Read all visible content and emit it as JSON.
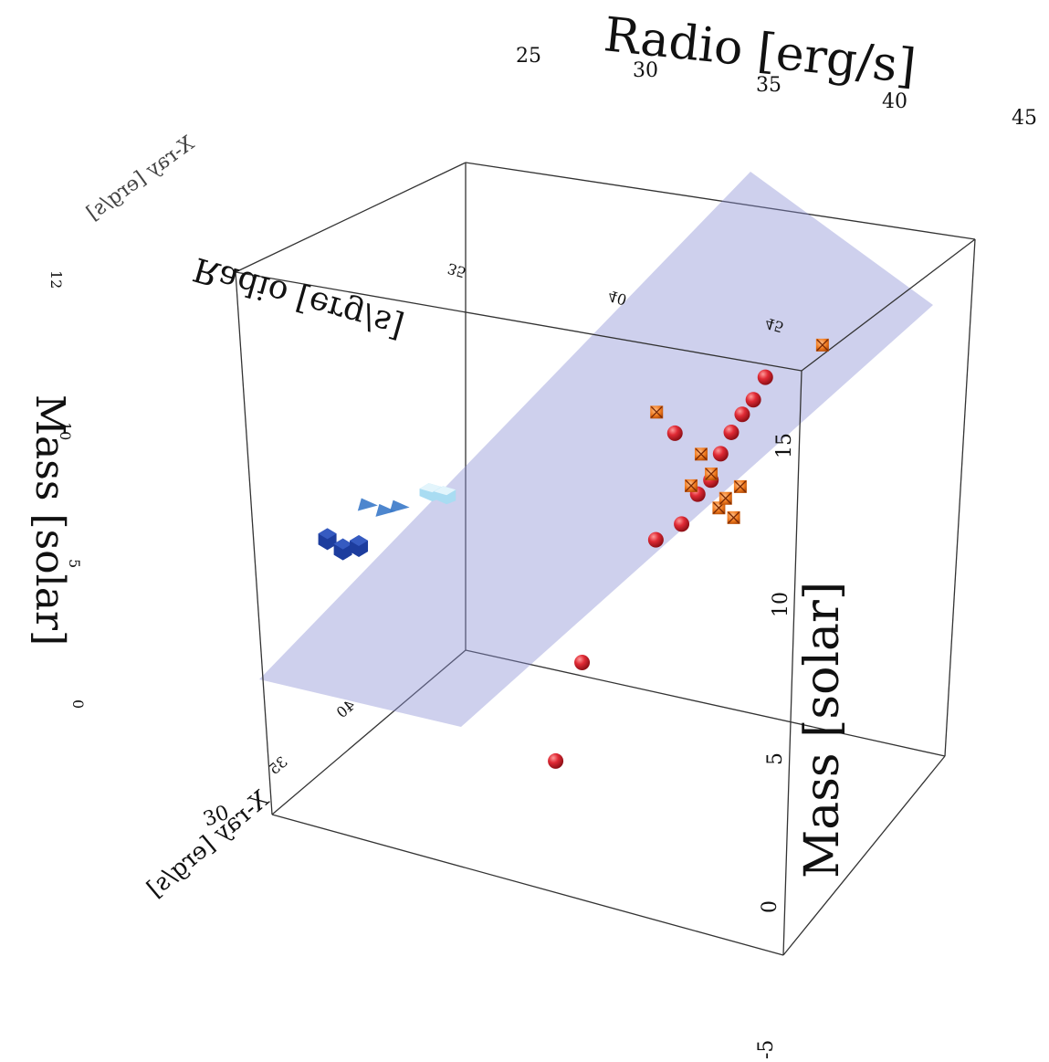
{
  "chart_data": {
    "type": "scatter",
    "dimensions": 3,
    "axes": {
      "radio": {
        "label": "Radio [erg/s]",
        "ticks": [
          "25",
          "30",
          "35",
          "40",
          "45"
        ],
        "ticks_reversed": [
          "35",
          "40",
          "45"
        ]
      },
      "xray": {
        "label": "X-ray [erg/s]",
        "ticks": [
          "30",
          "35",
          "40"
        ]
      },
      "mass": {
        "label": "Mass [solar]",
        "ticks": [
          "0",
          "5",
          "10",
          "15"
        ],
        "ticks_outer": [
          "-5"
        ],
        "ticks_reversed": [
          "0",
          "5",
          "10",
          "12"
        ]
      }
    },
    "fit_plane": {
      "shown": true,
      "color": "#8a8fd3",
      "opacity": 0.42
    },
    "series": [
      {
        "marker": "sphere",
        "color": "#d81e2c",
        "points": [
          {
            "radio": 37.2,
            "xray": 33.1,
            "mass": 2.6
          },
          {
            "radio": 38.1,
            "xray": 34.2,
            "mass": 5.3
          },
          {
            "radio": 41.1,
            "xray": 35.8,
            "mass": 8.9
          },
          {
            "radio": 42.3,
            "xray": 36.0,
            "mass": 9.5
          },
          {
            "radio": 43.0,
            "xray": 36.3,
            "mass": 10.4
          },
          {
            "radio": 43.5,
            "xray": 36.6,
            "mass": 10.8
          },
          {
            "radio": 43.8,
            "xray": 37.0,
            "mass": 11.5
          },
          {
            "radio": 44.2,
            "xray": 37.3,
            "mass": 12.1
          },
          {
            "radio": 44.6,
            "xray": 37.6,
            "mass": 12.6
          },
          {
            "radio": 45.0,
            "xray": 37.9,
            "mass": 13.0
          },
          {
            "radio": 45.4,
            "xray": 38.3,
            "mass": 13.6
          },
          {
            "radio": 42.0,
            "xray": 36.4,
            "mass": 12.0
          }
        ]
      },
      {
        "marker": "star",
        "color": "#f07a1e",
        "points": [
          {
            "radio": 41.5,
            "xray": 35.9,
            "mass": 12.7
          },
          {
            "radio": 42.7,
            "xray": 36.3,
            "mass": 10.6
          },
          {
            "radio": 43.1,
            "xray": 36.6,
            "mass": 11.5
          },
          {
            "radio": 43.4,
            "xray": 36.8,
            "mass": 10.9
          },
          {
            "radio": 43.6,
            "xray": 36.9,
            "mass": 9.9
          },
          {
            "radio": 43.9,
            "xray": 37.0,
            "mass": 10.2
          },
          {
            "radio": 44.1,
            "xray": 37.2,
            "mass": 9.6
          },
          {
            "radio": 44.4,
            "xray": 37.4,
            "mass": 10.5
          },
          {
            "radio": 47.2,
            "xray": 40.0,
            "mass": 14.3
          }
        ]
      },
      {
        "marker": "cube",
        "color": "#1d3d9e",
        "points": [
          {
            "radio": 28.0,
            "xray": 31.0,
            "mass": 8.3
          },
          {
            "radio": 28.4,
            "xray": 31.5,
            "mass": 7.9
          },
          {
            "radio": 29.0,
            "xray": 31.8,
            "mass": 8.0
          }
        ]
      },
      {
        "marker": "cone",
        "color": "#3a79c9",
        "points": [
          {
            "radio": 29.4,
            "xray": 32.0,
            "mass": 9.2
          },
          {
            "radio": 30.0,
            "xray": 32.4,
            "mass": 9.0
          },
          {
            "radio": 30.5,
            "xray": 32.7,
            "mass": 9.1
          }
        ]
      },
      {
        "marker": "box",
        "color": "#a9dcf2",
        "points": [
          {
            "radio": 31.8,
            "xray": 33.2,
            "mass": 9.6
          },
          {
            "radio": 32.3,
            "xray": 33.5,
            "mass": 9.5
          }
        ]
      }
    ]
  },
  "render": {
    "colors": {
      "edge": "#333333",
      "plane": "#8a8fd3",
      "sphere": "#d81e2c",
      "star": "#f07a1e",
      "cube": "#1d3d9e",
      "cone": "#3a79c9",
      "box": "#a9dcf2"
    }
  }
}
